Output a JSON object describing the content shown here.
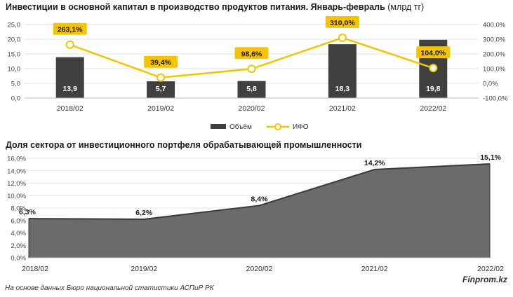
{
  "chart_data": [
    {
      "type": "bar",
      "title": "Инвестиции в основной капитал в производство продуктов питания. Январь-февраль",
      "title_unit": "(млрд тг)",
      "categories": [
        "2018/02",
        "2019/02",
        "2020/02",
        "2021/02",
        "2022/02"
      ],
      "series": [
        {
          "name": "Объём",
          "type": "bar",
          "axis": "left",
          "color": "#404040",
          "values": [
            13.9,
            5.7,
            5.8,
            18.3,
            19.8
          ],
          "labels": [
            "13,9",
            "5,7",
            "5,8",
            "18,3",
            "19,8"
          ]
        },
        {
          "name": "ИФО",
          "type": "line",
          "axis": "right",
          "color": "#f5c400",
          "values": [
            263.1,
            39.4,
            98.6,
            310.0,
            104.0
          ],
          "labels": [
            "263,1%",
            "39,4%",
            "98,6%",
            "310,0%",
            "104,0%"
          ]
        }
      ],
      "ylim": [
        0,
        25
      ],
      "y_ticks": [
        "0,0",
        "5,0",
        "10,0",
        "15,0",
        "20,0",
        "25,0"
      ],
      "y2lim": [
        -100,
        400
      ],
      "y2_ticks": [
        "-100,0%",
        "0,0%",
        "100,0%",
        "200,0%",
        "300,0%",
        "400,0%"
      ],
      "grid": true,
      "legend": "bottom"
    },
    {
      "type": "area",
      "title": "Доля сектора от инвестиционного портфеля обрабатывающей промышленности",
      "categories": [
        "2018/02",
        "2019/02",
        "2020/02",
        "2021/02",
        "2022/02"
      ],
      "series": [
        {
          "name": "Доля",
          "color": "#6b6b6b",
          "values": [
            6.3,
            6.2,
            8.4,
            14.2,
            15.1
          ],
          "labels": [
            "6,3%",
            "6,2%",
            "8,4%",
            "14,2%",
            "15,1%"
          ]
        }
      ],
      "ylim": [
        0,
        16
      ],
      "y_ticks": [
        "0,0%",
        "2,0%",
        "4,0%",
        "6,0%",
        "8,0%",
        "10,0%",
        "12,0%",
        "14,0%",
        "16,0%"
      ],
      "grid": true
    }
  ],
  "footer": {
    "source": "На основе данных Бюро национальной статистики АСПиР РК",
    "brand": "Finprom.kz"
  }
}
